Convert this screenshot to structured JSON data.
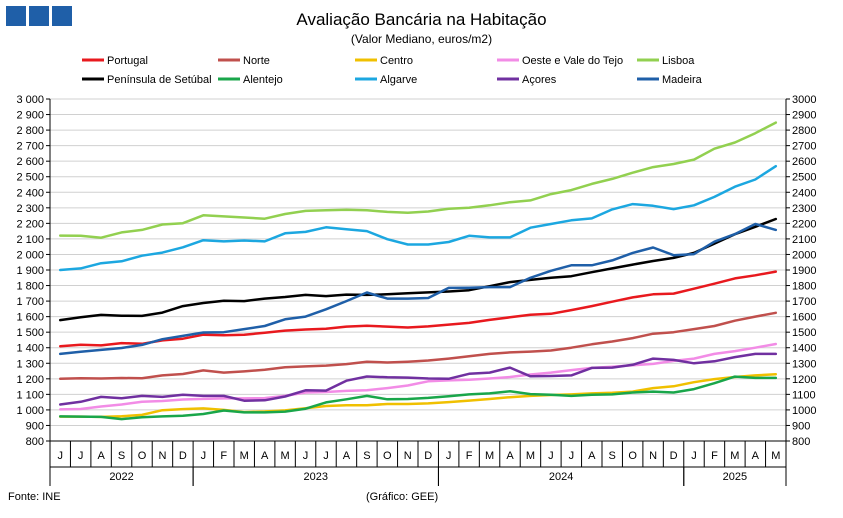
{
  "header": {
    "title": "Avaliação Bancária na Habitação",
    "subtitle": "(Valor Mediano, euros/m2)"
  },
  "footer": {
    "source": "Fonte: INE",
    "credit": "(Gráfico: GEE)"
  },
  "chart_data": {
    "type": "line",
    "title": "Avaliação Bancária na Habitação",
    "subtitle": "(Valor Mediano, euros/m2)",
    "x": [
      "J",
      "J",
      "A",
      "S",
      "O",
      "N",
      "D",
      "J",
      "F",
      "M",
      "A",
      "M",
      "J",
      "J",
      "A",
      "S",
      "O",
      "N",
      "D",
      "J",
      "F",
      "M",
      "A",
      "M",
      "J",
      "J",
      "A",
      "S",
      "O",
      "N",
      "D",
      "J",
      "F",
      "M",
      "A",
      "M"
    ],
    "year_labels": [
      {
        "label": "2022",
        "start": 0,
        "end": 6
      },
      {
        "label": "2023",
        "start": 7,
        "end": 18
      },
      {
        "label": "2024",
        "start": 19,
        "end": 30
      },
      {
        "label": "2025",
        "start": 31,
        "end": 35
      }
    ],
    "ylim": [
      800,
      3000
    ],
    "yticks_left": [
      "800",
      "900",
      "1 000",
      "1 100",
      "1 200",
      "1 300",
      "1 400",
      "1 500",
      "1 600",
      "1 700",
      "1 800",
      "1 900",
      "2 000",
      "2 100",
      "2 200",
      "2 300",
      "2 400",
      "2 500",
      "2 600",
      "2 700",
      "2 800",
      "2 900",
      "3 000"
    ],
    "yticks_right": [
      "800",
      "900",
      "1000",
      "1100",
      "1200",
      "1300",
      "1400",
      "1500",
      "1600",
      "1700",
      "1800",
      "1900",
      "2000",
      "2100",
      "2200",
      "2300",
      "2400",
      "2500",
      "2600",
      "2700",
      "2800",
      "2900",
      "3000"
    ],
    "grid": true,
    "legend": "top",
    "series": [
      {
        "name": "Portugal",
        "color": "#e8191e",
        "values": [
          1410,
          1419,
          1415,
          1430,
          1425,
          1447,
          1458,
          1484,
          1480,
          1484,
          1496,
          1510,
          1517,
          1522,
          1536,
          1541,
          1536,
          1530,
          1537,
          1549,
          1560,
          1579,
          1596,
          1612,
          1618,
          1642,
          1668,
          1696,
          1724,
          1744,
          1748,
          1780,
          1812,
          1846,
          1866,
          1890
        ]
      },
      {
        "name": "Norte",
        "color": "#c0504d",
        "values": [
          1200,
          1204,
          1202,
          1205,
          1204,
          1222,
          1231,
          1254,
          1240,
          1248,
          1258,
          1274,
          1280,
          1285,
          1295,
          1310,
          1305,
          1310,
          1318,
          1330,
          1345,
          1360,
          1370,
          1375,
          1382,
          1400,
          1422,
          1440,
          1462,
          1490,
          1500,
          1520,
          1540,
          1574,
          1600,
          1625
        ]
      },
      {
        "name": "Centro",
        "color": "#f0c000",
        "values": [
          957,
          957,
          955,
          959,
          968,
          998,
          1005,
          1010,
          1000,
          986,
          990,
          997,
          1011,
          1025,
          1030,
          1030,
          1038,
          1038,
          1042,
          1050,
          1060,
          1070,
          1082,
          1090,
          1096,
          1100,
          1106,
          1110,
          1118,
          1140,
          1152,
          1178,
          1198,
          1212,
          1222,
          1230
        ]
      },
      {
        "name": "Oeste e Vale do Tejo",
        "color": "#f28ce6",
        "values": [
          1003,
          1006,
          1022,
          1035,
          1052,
          1057,
          1067,
          1071,
          1074,
          1074,
          1076,
          1090,
          1112,
          1115,
          1122,
          1126,
          1140,
          1157,
          1184,
          1190,
          1194,
          1202,
          1212,
          1228,
          1240,
          1256,
          1270,
          1278,
          1287,
          1296,
          1315,
          1330,
          1360,
          1378,
          1400,
          1424
        ]
      },
      {
        "name": "Lisboa",
        "color": "#92d050",
        "values": [
          2121,
          2120,
          2108,
          2142,
          2158,
          2193,
          2201,
          2252,
          2245,
          2238,
          2230,
          2260,
          2280,
          2284,
          2288,
          2284,
          2274,
          2268,
          2276,
          2294,
          2300,
          2316,
          2336,
          2348,
          2388,
          2414,
          2454,
          2486,
          2526,
          2562,
          2582,
          2610,
          2680,
          2720,
          2780,
          2848
        ]
      },
      {
        "name": "Península de Setúbal",
        "color": "#000000",
        "values": [
          1578,
          1596,
          1611,
          1606,
          1605,
          1626,
          1668,
          1688,
          1702,
          1700,
          1716,
          1726,
          1740,
          1732,
          1742,
          1740,
          1744,
          1750,
          1756,
          1762,
          1770,
          1796,
          1822,
          1836,
          1850,
          1860,
          1886,
          1910,
          1935,
          1958,
          1978,
          2010,
          2070,
          2130,
          2178,
          2228
        ]
      },
      {
        "name": "Alentejo",
        "color": "#19a64a",
        "values": [
          958,
          957,
          955,
          941,
          953,
          958,
          963,
          974,
          996,
          984,
          984,
          989,
          1008,
          1048,
          1068,
          1090,
          1068,
          1070,
          1077,
          1088,
          1100,
          1106,
          1120,
          1102,
          1098,
          1090,
          1098,
          1100,
          1112,
          1118,
          1112,
          1134,
          1172,
          1214,
          1206,
          1206
        ]
      },
      {
        "name": "Algarve",
        "color": "#1ca7e0",
        "values": [
          1900,
          1910,
          1944,
          1956,
          1992,
          2012,
          2046,
          2092,
          2084,
          2090,
          2084,
          2136,
          2145,
          2175,
          2162,
          2150,
          2098,
          2064,
          2064,
          2080,
          2120,
          2110,
          2110,
          2172,
          2196,
          2220,
          2232,
          2290,
          2324,
          2313,
          2292,
          2316,
          2370,
          2436,
          2482,
          2568
        ]
      },
      {
        "name": "Açores",
        "color": "#7030a0",
        "values": [
          1035,
          1052,
          1084,
          1075,
          1090,
          1084,
          1098,
          1090,
          1090,
          1059,
          1062,
          1086,
          1126,
          1124,
          1188,
          1215,
          1210,
          1208,
          1202,
          1200,
          1232,
          1240,
          1272,
          1216,
          1218,
          1222,
          1270,
          1272,
          1290,
          1330,
          1322,
          1300,
          1313,
          1340,
          1360,
          1360
        ]
      },
      {
        "name": "Madeira",
        "color": "#1f5fa8",
        "values": [
          1360,
          1374,
          1386,
          1398,
          1418,
          1455,
          1476,
          1498,
          1500,
          1520,
          1540,
          1583,
          1600,
          1647,
          1700,
          1755,
          1716,
          1716,
          1720,
          1785,
          1786,
          1790,
          1790,
          1850,
          1895,
          1930,
          1930,
          1962,
          2010,
          2045,
          1995,
          2002,
          2082,
          2131,
          2196,
          2158
        ]
      }
    ]
  }
}
